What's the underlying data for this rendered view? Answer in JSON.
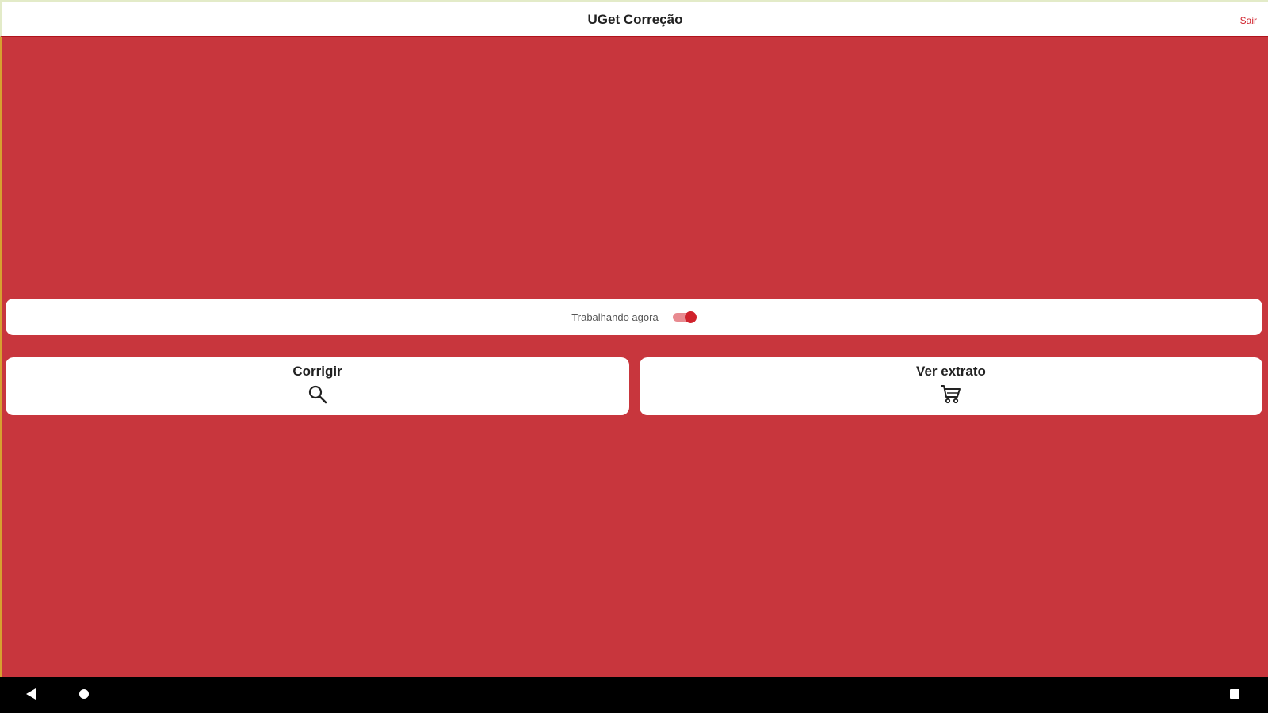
{
  "header": {
    "title": "UGet Correção",
    "exit_label": "Sair"
  },
  "status": {
    "label": "Trabalhando agora",
    "toggle_on": true
  },
  "actions": [
    {
      "label": "Corrigir",
      "icon": "search-icon"
    },
    {
      "label": "Ver extrato",
      "icon": "cart-icon"
    }
  ],
  "colors": {
    "background": "#c8363d",
    "accent": "#d0222c"
  },
  "navbar": {
    "icons": [
      "back-icon",
      "home-icon",
      "recents-icon"
    ]
  }
}
